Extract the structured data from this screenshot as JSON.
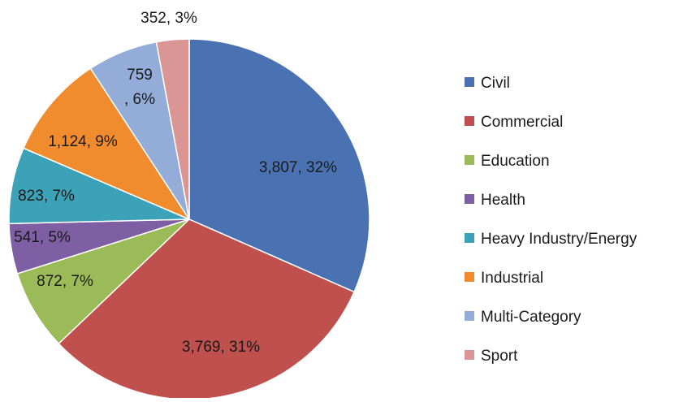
{
  "chart_data": {
    "type": "pie",
    "title": "",
    "start_angle_deg": 0,
    "direction": "clockwise",
    "legend_position": "right",
    "slices": [
      {
        "label": "Civil",
        "value": 3807,
        "percent": 32,
        "data_label": "3,807, 32%",
        "color": "#4a72b2"
      },
      {
        "label": "Commercial",
        "value": 3769,
        "percent": 31,
        "data_label": "3,769, 31%",
        "color": "#c0504d"
      },
      {
        "label": "Education",
        "value": 872,
        "percent": 7,
        "data_label": "872, 7%",
        "color": "#9bbb59"
      },
      {
        "label": "Health",
        "value": 541,
        "percent": 5,
        "data_label": "541, 5%",
        "color": "#7f5fa3"
      },
      {
        "label": "Heavy Industry/Energy",
        "value": 823,
        "percent": 7,
        "data_label": "823, 7%",
        "color": "#3ca2b8"
      },
      {
        "label": "Industrial",
        "value": 1124,
        "percent": 9,
        "data_label": "1,124, 9%",
        "color": "#f08c2e"
      },
      {
        "label": "Multi-Category",
        "value": 759,
        "percent": 6,
        "data_label": "759\n, 6%",
        "color": "#93add8"
      },
      {
        "label": "Sport",
        "value": 352,
        "percent": 3,
        "data_label": "352, 3%",
        "color": "#d99694"
      }
    ]
  }
}
